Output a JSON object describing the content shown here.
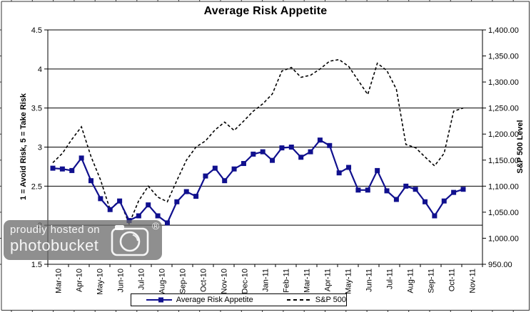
{
  "chart_data": {
    "type": "line",
    "title": "Average Risk Appetite",
    "y_left": {
      "label": "1 = Avoid Risk, 5 = Take Risk",
      "min": 1.5,
      "max": 4.5,
      "tick_labels": [
        "4.5",
        "4",
        "3.5",
        "3",
        "2.5",
        "2",
        "1.5"
      ]
    },
    "y_right": {
      "label": "S&P 500 Level",
      "min": 950,
      "max": 1400,
      "tick_labels": [
        "1,400.00",
        "1,350.00",
        "1,300.00",
        "1,250.00",
        "1,200.00",
        "1,150.00",
        "1,100.00",
        "1,050.00",
        "1,000.00",
        "950.00"
      ]
    },
    "x": {
      "tick_labels": [
        "Mar-10",
        "Apr-10",
        "May-10",
        "Jun-10",
        "Jul-10",
        "Aug-10",
        "Sep-10",
        "Oct-10",
        "Nov-10",
        "Dec-10",
        "Jan-11",
        "Feb-11",
        "Mar-11",
        "Apr-11",
        "May-11",
        "Jun-11",
        "Jul-11",
        "Aug-11",
        "Sep-11",
        "Oct-11",
        "Nov-11"
      ]
    },
    "series": [
      {
        "name": "Average Risk Appetite",
        "axis": "left",
        "color": "#10108E",
        "marker": "square",
        "line_style": "solid",
        "values": [
          2.73,
          2.72,
          2.7,
          2.86,
          2.57,
          2.34,
          2.2,
          2.31,
          2.06,
          2.12,
          2.26,
          2.12,
          2.03,
          2.3,
          2.43,
          2.37,
          2.63,
          2.73,
          2.57,
          2.72,
          2.79,
          2.91,
          2.94,
          2.83,
          2.99,
          3.0,
          2.87,
          2.94,
          3.09,
          3.02,
          2.67,
          2.74,
          2.45,
          2.45,
          2.7,
          2.44,
          2.33,
          2.5,
          2.46,
          2.3,
          2.12,
          2.31,
          2.42,
          2.46
        ]
      },
      {
        "name": "S&P 500",
        "axis": "right",
        "color": "#000000",
        "marker": "none",
        "line_style": "dashed",
        "values": [
          1145,
          1163,
          1190,
          1214,
          1157,
          1112,
          1055,
          1073,
          1028,
          1072,
          1100,
          1079,
          1070,
          1111,
          1150,
          1175,
          1187,
          1208,
          1223,
          1207,
          1225,
          1244,
          1258,
          1277,
          1321,
          1328,
          1309,
          1313,
          1325,
          1340,
          1343,
          1330,
          1303,
          1276,
          1336,
          1322,
          1286,
          1180,
          1174,
          1156,
          1139,
          1163,
          1244,
          1250
        ]
      }
    ],
    "legend_position": "bottom",
    "grid": "horizontal"
  },
  "watermark": {
    "line1": "proudly hosted on",
    "line2": "photobucket",
    "registered": "®"
  }
}
